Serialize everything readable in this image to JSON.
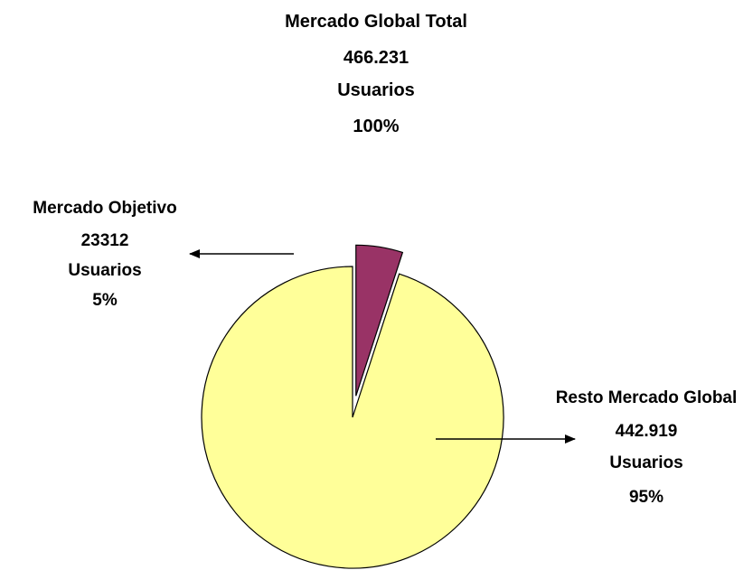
{
  "chart_data": {
    "type": "pie",
    "title": {
      "line1": "Mercado Global Total",
      "line2": "466.231",
      "line3": "Usuarios",
      "line4": "100%"
    },
    "total": 466231,
    "slices": [
      {
        "label": "Mercado Objetivo",
        "value_text": "23312",
        "unit": "Usuarios",
        "percent_text": "5%",
        "percent": 5,
        "value": 23312,
        "color": "#993366",
        "exploded": true
      },
      {
        "label": "Resto Mercado Global",
        "value_text": "442.919",
        "unit": "Usuarios",
        "percent_text": "95%",
        "percent": 95,
        "value": 442919,
        "color": "#ffff99",
        "exploded": false
      }
    ],
    "legend": "none",
    "grid": false
  }
}
